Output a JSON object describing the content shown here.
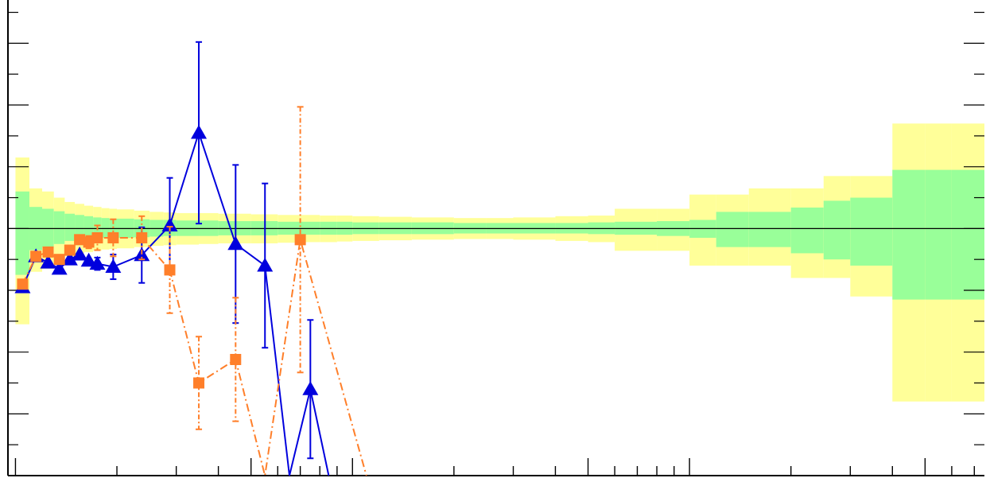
{
  "chart_data": {
    "type": "line",
    "x_scale": "log",
    "xlim": [
      0.95,
      750
    ],
    "ylim": [
      -0.4,
      0.37
    ],
    "grid": false,
    "bands": {
      "edges": [
        1,
        1.1,
        1.2,
        1.3,
        1.4,
        1.5,
        1.6,
        1.7,
        1.8,
        1.9,
        2,
        2.25,
        2.5,
        2.75,
        3,
        3.5,
        4,
        5,
        6,
        7,
        8,
        9,
        10,
        12,
        15,
        20,
        25,
        30,
        40,
        50,
        60,
        80,
        100,
        120,
        150,
        200,
        250,
        300,
        400,
        500,
        600,
        750
      ],
      "inner": [
        [
          -0.075,
          0.06
        ],
        [
          -0.035,
          0.035
        ],
        [
          -0.03,
          0.032
        ],
        [
          -0.025,
          0.028
        ],
        [
          -0.02,
          0.024
        ],
        [
          -0.018,
          0.022
        ],
        [
          -0.017,
          0.02
        ],
        [
          -0.016,
          0.018
        ],
        [
          -0.015,
          0.017
        ],
        [
          -0.015,
          0.016
        ],
        [
          -0.015,
          0.016
        ],
        [
          -0.014,
          0.015
        ],
        [
          -0.013,
          0.014
        ],
        [
          -0.012,
          0.014
        ],
        [
          -0.012,
          0.013
        ],
        [
          -0.012,
          0.013
        ],
        [
          -0.011,
          0.012
        ],
        [
          -0.011,
          0.012
        ],
        [
          -0.01,
          0.011
        ],
        [
          -0.01,
          0.011
        ],
        [
          -0.01,
          0.011
        ],
        [
          -0.01,
          0.011
        ],
        [
          -0.009,
          0.01
        ],
        [
          -0.009,
          0.01
        ],
        [
          -0.009,
          0.01
        ],
        [
          -0.008,
          0.009
        ],
        [
          -0.008,
          0.009
        ],
        [
          -0.008,
          0.009
        ],
        [
          -0.008,
          0.009
        ],
        [
          -0.009,
          0.01
        ],
        [
          -0.01,
          0.011
        ],
        [
          -0.012,
          0.012
        ],
        [
          -0.015,
          0.014
        ],
        [
          -0.03,
          0.027
        ],
        [
          -0.03,
          0.027
        ],
        [
          -0.04,
          0.034
        ],
        [
          -0.05,
          0.045
        ],
        [
          -0.06,
          0.05
        ],
        [
          -0.115,
          0.095
        ],
        [
          -0.115,
          0.095
        ],
        [
          -0.115,
          0.095
        ]
      ],
      "outer": [
        [
          -0.155,
          0.115
        ],
        [
          -0.07,
          0.065
        ],
        [
          -0.065,
          0.06
        ],
        [
          -0.055,
          0.05
        ],
        [
          -0.045,
          0.043
        ],
        [
          -0.04,
          0.04
        ],
        [
          -0.038,
          0.037
        ],
        [
          -0.036,
          0.035
        ],
        [
          -0.034,
          0.033
        ],
        [
          -0.033,
          0.032
        ],
        [
          -0.032,
          0.031
        ],
        [
          -0.03,
          0.029
        ],
        [
          -0.028,
          0.027
        ],
        [
          -0.027,
          0.026
        ],
        [
          -0.026,
          0.025
        ],
        [
          -0.025,
          0.025
        ],
        [
          -0.024,
          0.024
        ],
        [
          -0.024,
          0.023
        ],
        [
          -0.023,
          0.022
        ],
        [
          -0.022,
          0.022
        ],
        [
          -0.022,
          0.021
        ],
        [
          -0.021,
          0.021
        ],
        [
          -0.02,
          0.02
        ],
        [
          -0.019,
          0.019
        ],
        [
          -0.018,
          0.018
        ],
        [
          -0.017,
          0.017
        ],
        [
          -0.017,
          0.017
        ],
        [
          -0.018,
          0.018
        ],
        [
          -0.02,
          0.02
        ],
        [
          -0.022,
          0.021
        ],
        [
          -0.036,
          0.032
        ],
        [
          -0.036,
          0.032
        ],
        [
          -0.06,
          0.055
        ],
        [
          -0.06,
          0.055
        ],
        [
          -0.06,
          0.065
        ],
        [
          -0.08,
          0.065
        ],
        [
          -0.08,
          0.085
        ],
        [
          -0.11,
          0.085
        ],
        [
          -0.28,
          0.17
        ],
        [
          -0.28,
          0.17
        ],
        [
          -0.28,
          0.17
        ]
      ]
    },
    "series": [
      {
        "marker": "triangle",
        "color": "#0000dd",
        "line": "solid",
        "points": [
          {
            "x": 1.05,
            "y": -0.095,
            "err": 0.0
          },
          {
            "x": 1.15,
            "y": -0.045,
            "err": 0.0
          },
          {
            "x": 1.25,
            "y": -0.055,
            "err": 0.0
          },
          {
            "x": 1.35,
            "y": -0.065,
            "err": 0.0
          },
          {
            "x": 1.45,
            "y": -0.05,
            "err": 0.0
          },
          {
            "x": 1.55,
            "y": -0.042,
            "err": 0.0
          },
          {
            "x": 1.65,
            "y": -0.052,
            "err": 0.0
          },
          {
            "x": 1.75,
            "y": -0.057,
            "err": 0.01
          },
          {
            "x": 1.95,
            "y": -0.062,
            "err": 0.02
          },
          {
            "x": 2.37,
            "y": -0.043,
            "err": 0.045
          },
          {
            "x": 2.87,
            "y": 0.005,
            "err": 0.077
          },
          {
            "x": 3.5,
            "y": 0.155,
            "err": 0.147
          },
          {
            "x": 4.5,
            "y": -0.025,
            "err": 0.128
          },
          {
            "x": 5.5,
            "y": -0.06,
            "err": 0.133
          },
          {
            "x": 6.5,
            "y": -0.4,
            "err": 0.0
          },
          {
            "x": 7.5,
            "y": -0.26,
            "err": 0.112
          },
          {
            "x": 8.5,
            "y": -0.4,
            "err": 0.0
          }
        ]
      },
      {
        "marker": "square",
        "color": "#ff7f2a",
        "line": "dash-dot",
        "points": [
          {
            "x": 1.05,
            "y": -0.09,
            "err": 0.0
          },
          {
            "x": 1.15,
            "y": -0.045,
            "err": 0.0
          },
          {
            "x": 1.25,
            "y": -0.038,
            "err": 0.0
          },
          {
            "x": 1.35,
            "y": -0.05,
            "err": 0.0
          },
          {
            "x": 1.45,
            "y": -0.035,
            "err": 0.0
          },
          {
            "x": 1.55,
            "y": -0.018,
            "err": 0.0
          },
          {
            "x": 1.65,
            "y": -0.022,
            "err": 0.01
          },
          {
            "x": 1.75,
            "y": -0.015,
            "err": 0.02
          },
          {
            "x": 1.95,
            "y": -0.015,
            "err": 0.03
          },
          {
            "x": 2.37,
            "y": -0.015,
            "err": 0.035
          },
          {
            "x": 2.87,
            "y": -0.067,
            "err": 0.07
          },
          {
            "x": 3.5,
            "y": -0.25,
            "err": 0.075
          },
          {
            "x": 4.5,
            "y": -0.212,
            "err": 0.1
          },
          {
            "x": 5.5,
            "y": -0.4,
            "err": 0.0
          },
          {
            "x": 7.0,
            "y": -0.018,
            "err": 0.215
          },
          {
            "x": 11.0,
            "y": -0.4,
            "err": 0.0
          }
        ]
      }
    ]
  }
}
